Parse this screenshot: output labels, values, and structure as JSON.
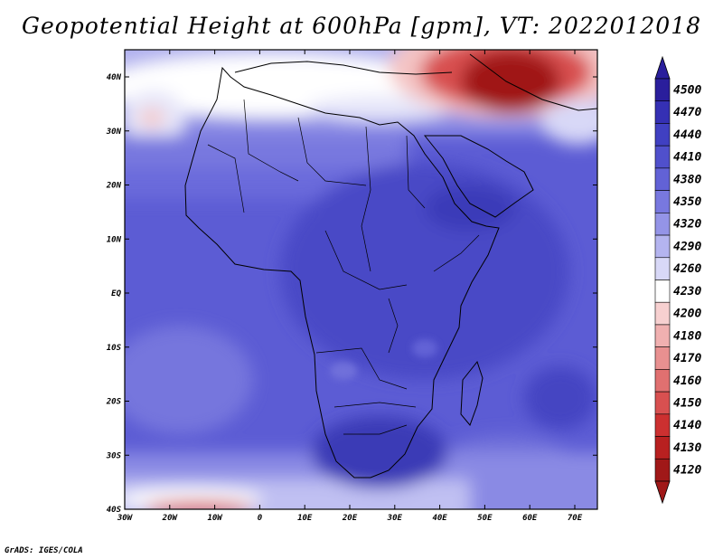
{
  "title": "Geopotential Height at 600hPa [gpm], VT: 2022012018",
  "credit": "GrADS: IGES/COLA",
  "map": {
    "lat_labels": [
      "40N",
      "30N",
      "20N",
      "10N",
      "EQ",
      "10S",
      "20S",
      "30S",
      "40S"
    ],
    "lon_labels": [
      "30W",
      "20W",
      "10W",
      "0",
      "10E",
      "20E",
      "30E",
      "40E",
      "50E",
      "60E",
      "70E"
    ]
  },
  "colorbar": {
    "levels": [
      "4500",
      "4470",
      "4440",
      "4410",
      "4380",
      "4350",
      "4320",
      "4290",
      "4260",
      "4230",
      "4200",
      "4180",
      "4170",
      "4160",
      "4150",
      "4140",
      "4130",
      "4120"
    ],
    "colors": [
      "#2a1e9c",
      "#3530b4",
      "#4040c2",
      "#5050cc",
      "#6262d6",
      "#7878df",
      "#9494e7",
      "#b4b4ef",
      "#d8d8f7",
      "#ffffff",
      "#f7d0d0",
      "#f0b0b0",
      "#e89090",
      "#e07070",
      "#d85050",
      "#cc3030",
      "#b82020",
      "#a01818"
    ]
  },
  "colors": {
    "background": "#ffffff",
    "field_base": "#5a5ad2",
    "land_border": "#000000"
  }
}
